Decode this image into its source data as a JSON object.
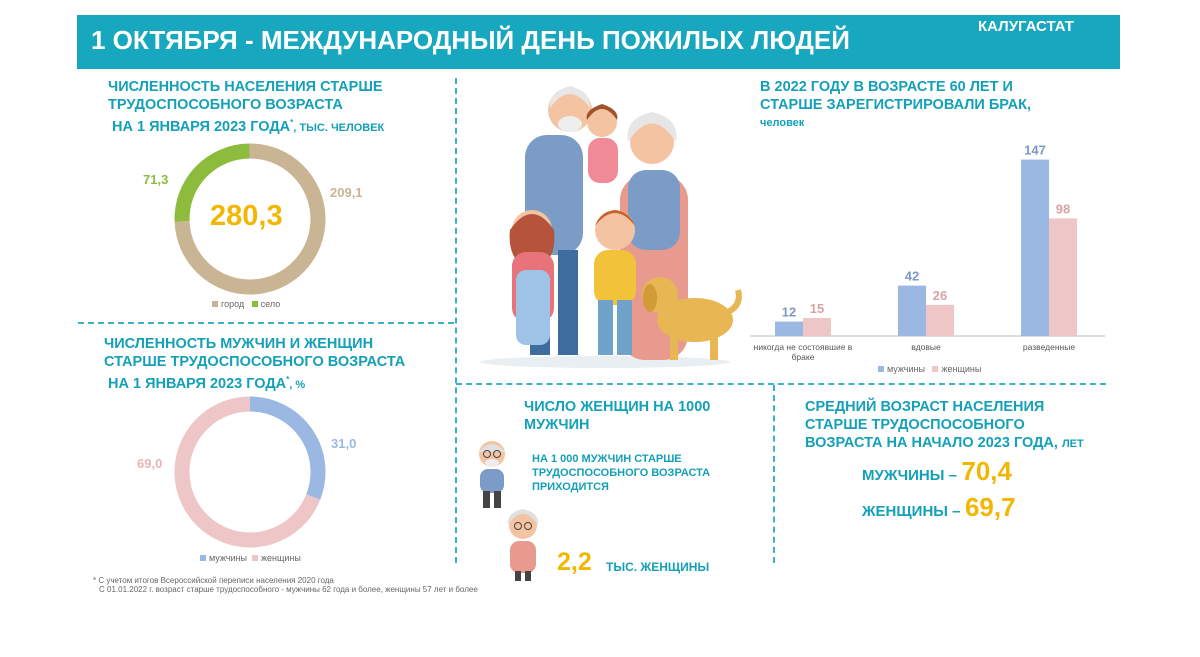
{
  "header": {
    "title": "1 ОКТЯБРЯ - МЕЖДУНАРОДНЫЙ ДЕНЬ ПОЖИЛЫХ ЛЮДЕЙ",
    "org": "КАЛУГАСТАТ"
  },
  "population": {
    "title_line1": "ЧИСЛЕННОСТЬ НАСЕЛЕНИЯ СТАРШЕ",
    "title_line2": "ТРУДОСПОСОБНОГО ВОЗРАСТА",
    "title_line3": "НА 1 ЯНВАРЯ 2023 ГОДА",
    "star": "*",
    "unit": ", тыс. человек",
    "total": "280,3",
    "urban_value": "209,1",
    "rural_value": "71,3",
    "legend_urban": "город",
    "legend_rural": "село"
  },
  "gender": {
    "title_line1": "ЧИСЛЕННОСТЬ МУЖЧИН И ЖЕНЩИН",
    "title_line2": "СТАРШЕ ТРУДОСПОСОБНОГО ВОЗРАСТА",
    "title_line3": "НА 1 ЯНВАРЯ 2023 ГОДА",
    "star": "*",
    "unit": ", %",
    "men_value": "31,0",
    "women_value": "69,0",
    "legend_men": "мужчины",
    "legend_women": "женщины"
  },
  "footnote": {
    "line1": "* С учетом итогов Всероссийской переписи населения 2020 года",
    "line2": "С 01.01.2022 г. возраст старше трудоспособного - мужчины 62 года и более, женщины 57 лет и более"
  },
  "marriage": {
    "title_line1": "В 2022 ГОДУ В ВОЗРАСТЕ 60 ЛЕТ И",
    "title_line2": "СТАРШЕ ЗАРЕГИСТРИРОВАЛИ БРАК,",
    "unit": "человек",
    "legend_men": "мужчины",
    "legend_women": "женщины"
  },
  "women_per_men": {
    "title_line1": "ЧИСЛО ЖЕНЩИН НА 1000",
    "title_line2": "МУЖЧИН",
    "text_line1": "НА 1 000 МУЖЧИН СТАРШЕ",
    "text_line2": "ТРУДОСПОСОБНОГО ВОЗРАСТА",
    "text_line3": "ПРИХОДИТСЯ",
    "value": "2,2",
    "unit": "ТЫС. ЖЕНЩИНЫ"
  },
  "avg_age": {
    "title_line1": "СРЕДНИЙ ВОЗРАСТ НАСЕЛЕНИЯ",
    "title_line2": "СТАРШЕ ТРУДОСПОСОБНОГО",
    "title_line3": "ВОЗРАСТА НА НАЧАЛО 2023 ГОДА,",
    "unit": "лет",
    "men_label": "МУЖЧИНЫ –",
    "men_value": "70,4",
    "women_label": "ЖЕНЩИНЫ –",
    "women_value": "69,7"
  },
  "colors": {
    "teal": "#17a7bf",
    "beige": "#c9b493",
    "green": "#8dbb3c",
    "blue": "#9bb8e3",
    "pink": "#eec6c8",
    "yellow": "#f2b705"
  },
  "chart_data": [
    {
      "type": "pie",
      "title": "ЧИСЛЕННОСТЬ НАСЕЛЕНИЯ СТАРШЕ ТРУДОСПОСОБНОГО ВОЗРАСТА НА 1 ЯНВАРЯ 2023 ГОДА",
      "categories": [
        "город",
        "село"
      ],
      "values": [
        209.1,
        71.3
      ],
      "center_label": "280,3",
      "legend": "bottom"
    },
    {
      "type": "pie",
      "title": "ЧИСЛЕННОСТЬ МУЖЧИН И ЖЕНЩИН СТАРШЕ ТРУДОСПОСОБНОГО ВОЗРАСТА НА 1 ЯНВАРЯ 2023 ГОДА",
      "categories": [
        "мужчины",
        "женщины"
      ],
      "values": [
        31.0,
        69.0
      ],
      "legend": "bottom"
    },
    {
      "type": "bar",
      "title": "В 2022 ГОДУ В ВОЗРАСТЕ 60 ЛЕТ И СТАРШЕ ЗАРЕГИСТРИРОВАЛИ БРАК, человек",
      "categories": [
        "никогда не состоявшие в браке",
        "вдовые",
        "разведенные"
      ],
      "series": [
        {
          "name": "мужчины",
          "values": [
            12,
            42,
            147
          ]
        },
        {
          "name": "женщины",
          "values": [
            15,
            26,
            98
          ]
        }
      ],
      "ylim": [
        0,
        150
      ],
      "grid": false,
      "legend": "bottom"
    }
  ]
}
